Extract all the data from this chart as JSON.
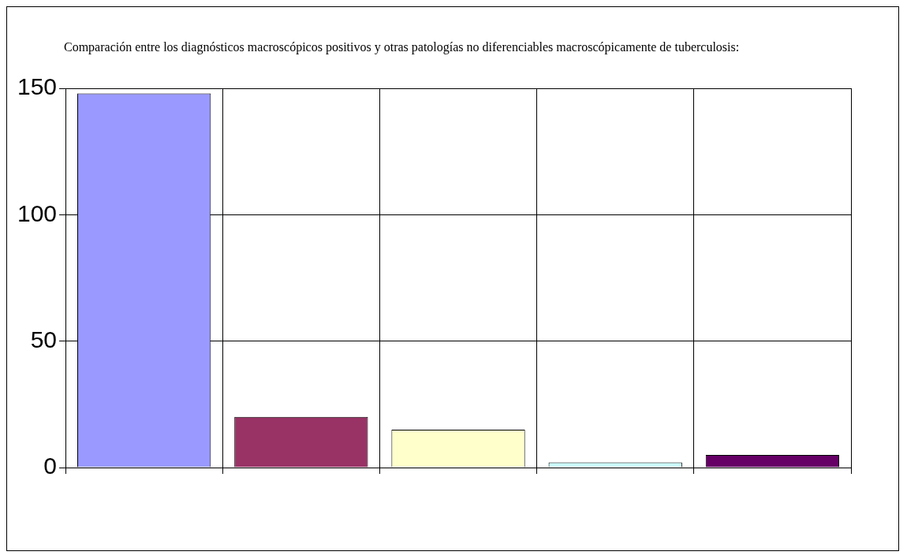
{
  "chart_data": {
    "type": "bar",
    "title": "Comparación entre los diagnósticos macroscópicos positivos y otras patologías no diferenciables macroscópicamente de tuberculosis:",
    "categories": [
      null,
      null,
      null,
      null,
      null
    ],
    "values": [
      148,
      20,
      15,
      2,
      5
    ],
    "colors": [
      "#9999ff",
      "#993366",
      "#ffffcc",
      "#ccffff",
      "#660066"
    ],
    "ylim": [
      0,
      150
    ],
    "yticks": [
      0,
      50,
      100,
      150
    ],
    "grid": true
  }
}
